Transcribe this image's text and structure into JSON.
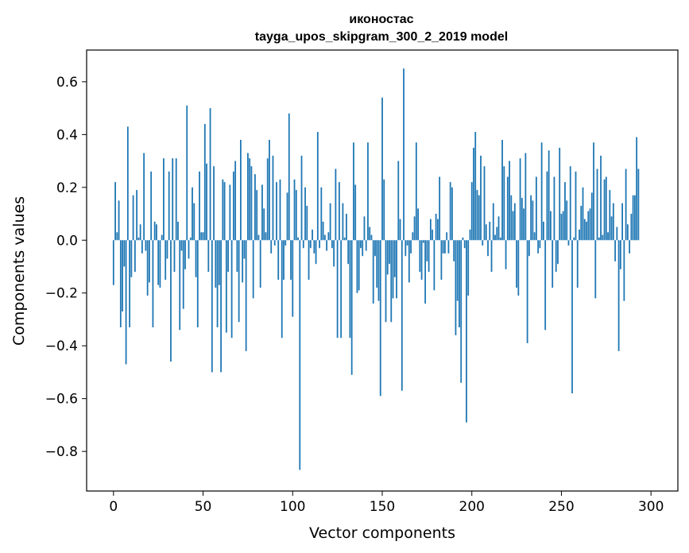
{
  "chart_data": {
    "type": "bar",
    "title": "иконостас",
    "subtitle": "tayga_upos_skipgram_300_2_2019 model",
    "xlabel": "Vector components",
    "ylabel": "Components values",
    "xlim": [
      -15,
      315
    ],
    "ylim": [
      -0.95,
      0.72
    ],
    "xticks": [
      0,
      50,
      100,
      150,
      200,
      250,
      300
    ],
    "yticks": [
      -0.8,
      -0.6,
      -0.4,
      -0.2,
      0.0,
      0.2,
      0.4,
      0.6
    ],
    "ytick_labels": [
      "−0.8",
      "−0.6",
      "−0.4",
      "−0.2",
      "0.0",
      "0.2",
      "0.4",
      "0.6"
    ],
    "bar_color": "#1f77b4",
    "grid": false,
    "values": [
      -0.17,
      0.22,
      0.03,
      0.15,
      -0.33,
      -0.27,
      -0.1,
      -0.47,
      0.43,
      -0.33,
      -0.14,
      0.17,
      -0.12,
      0.19,
      0.01,
      0.06,
      -0.05,
      0.33,
      -0.04,
      -0.21,
      -0.16,
      0.26,
      -0.33,
      0.07,
      0.06,
      -0.17,
      -0.18,
      0.02,
      0.31,
      -0.15,
      -0.07,
      0.26,
      -0.46,
      0.31,
      -0.12,
      0.31,
      0.07,
      -0.34,
      -0.04,
      -0.26,
      -0.11,
      0.51,
      -0.07,
      0.01,
      0.2,
      0.14,
      -0.14,
      -0.33,
      0.26,
      0.03,
      0.03,
      0.44,
      0.29,
      -0.12,
      0.5,
      -0.5,
      0.28,
      -0.18,
      -0.33,
      -0.17,
      -0.5,
      0.23,
      0.22,
      -0.35,
      -0.12,
      0.21,
      -0.37,
      0.26,
      0.3,
      -0.12,
      -0.31,
      0.38,
      -0.16,
      -0.07,
      -0.42,
      0.33,
      0.31,
      0.28,
      -0.22,
      0.25,
      0.19,
      0.02,
      -0.18,
      0.21,
      0.12,
      0.03,
      0.31,
      0.38,
      -0.05,
      0.32,
      -0.02,
      0.22,
      -0.15,
      0.23,
      -0.37,
      -0.15,
      -0.02,
      0.18,
      0.48,
      -0.15,
      -0.29,
      0.23,
      0.19,
      0.01,
      -0.87,
      0.32,
      -0.03,
      0.2,
      0.13,
      -0.15,
      -0.03,
      0.04,
      -0.05,
      -0.09,
      0.41,
      -0.03,
      0.2,
      0.07,
      0.02,
      -0.04,
      0.03,
      0.14,
      -0.03,
      -0.1,
      0.27,
      -0.37,
      0.22,
      -0.37,
      0.14,
      0.01,
      0.1,
      -0.09,
      -0.37,
      -0.51,
      0.37,
      0.21,
      -0.2,
      -0.19,
      -0.03,
      -0.06,
      0.09,
      -0.04,
      0.37,
      0.05,
      0.02,
      -0.24,
      -0.06,
      -0.18,
      -0.23,
      -0.59,
      0.54,
      0.23,
      -0.31,
      -0.13,
      -0.09,
      -0.31,
      -0.22,
      -0.14,
      -0.22,
      0.3,
      0.08,
      -0.57,
      0.65,
      -0.06,
      -0.02,
      -0.16,
      -0.05,
      0.03,
      0.09,
      0.37,
      0.12,
      -0.12,
      -0.15,
      -0.01,
      -0.24,
      -0.08,
      -0.12,
      0.08,
      0.04,
      -0.19,
      0.1,
      0.08,
      0.24,
      -0.15,
      -0.05,
      -0.05,
      0.03,
      -0.05,
      0.22,
      0.2,
      -0.08,
      -0.36,
      -0.23,
      -0.33,
      -0.54,
      0.01,
      -0.03,
      -0.69,
      -0.21,
      0.04,
      0.22,
      0.35,
      0.41,
      0.19,
      0.17,
      0.32,
      -0.02,
      0.28,
      0.06,
      -0.06,
      0.07,
      -0.12,
      0.14,
      0.02,
      0.05,
      0.09,
      0.01,
      0.38,
      0.28,
      -0.11,
      0.24,
      0.3,
      0.17,
      0.11,
      0.14,
      -0.18,
      -0.21,
      0.31,
      0.16,
      0.12,
      0.33,
      -0.39,
      -0.06,
      0.17,
      0.15,
      0.03,
      0.24,
      -0.05,
      -0.03,
      0.37,
      0.07,
      -0.34,
      0.26,
      0.34,
      0.11,
      -0.18,
      0.24,
      -0.12,
      -0.09,
      0.35,
      0.1,
      0.11,
      0.22,
      0.15,
      -0.02,
      0.28,
      -0.58,
      0.01,
      0.26,
      -0.18,
      0.04,
      0.13,
      0.2,
      0.08,
      0.07,
      0.11,
      0.12,
      0.18,
      0.37,
      -0.22,
      0.27,
      0.01,
      0.32,
      0.02,
      0.23,
      0.24,
      0.03,
      0.19,
      0.09,
      0.14,
      -0.08,
      0.05,
      -0.42,
      -0.11,
      0.14,
      -0.23,
      0.27,
      0.06,
      -0.05,
      0.1,
      0.17,
      0.17,
      0.39,
      0.27
    ]
  }
}
